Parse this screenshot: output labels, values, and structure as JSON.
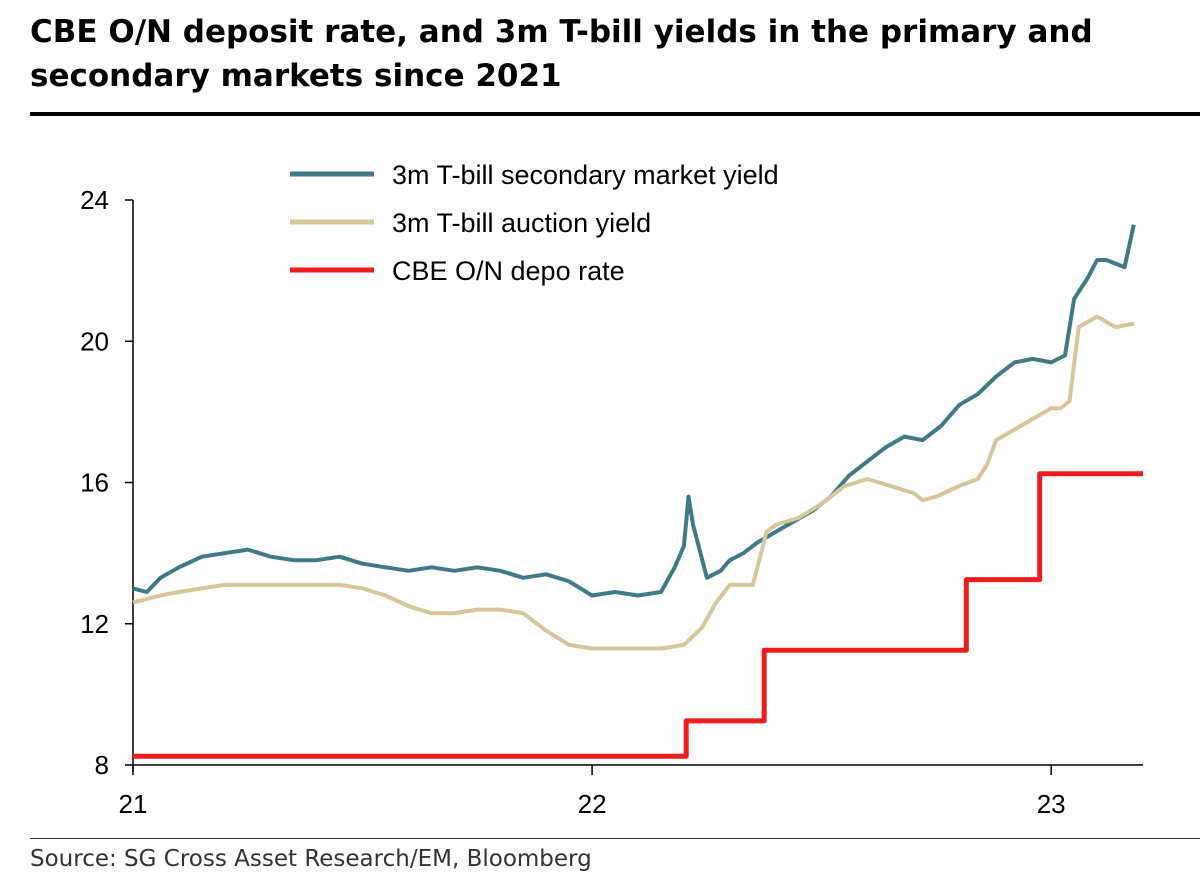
{
  "title": "CBE O/N deposit rate, and 3m T-bill yields in the primary and secondary markets since 2021",
  "source": "Source: SG Cross Asset Research/EM, Bloomberg",
  "colors": {
    "secondary": "#3f7a86",
    "auction": "#d8c59a",
    "depo": "#ee1c1c",
    "axis": "#000000"
  },
  "chart_data": {
    "type": "line",
    "title": "CBE O/N deposit rate, and 3m T-bill yields in the primary and secondary markets since 2021",
    "xlabel": "",
    "ylabel": "",
    "xlim": [
      2021.0,
      2023.2
    ],
    "ylim": [
      8,
      24
    ],
    "x_ticks": [
      2021,
      2022,
      2023
    ],
    "x_tick_labels": [
      "21",
      "22",
      "23"
    ],
    "y_ticks": [
      8,
      12,
      16,
      20,
      24
    ],
    "y_tick_labels": [
      "8",
      "12",
      "16",
      "20",
      "24"
    ],
    "legend": [
      "3m T-bill  secondary market yield",
      "3m T-bill auction yield",
      "CBE O/N depo rate"
    ],
    "legend_position": "top-center",
    "series": [
      {
        "name": "3m T-bill  secondary market yield",
        "color": "#3f7a86",
        "x": [
          2021.0,
          2021.03,
          2021.06,
          2021.1,
          2021.15,
          2021.2,
          2021.25,
          2021.3,
          2021.35,
          2021.4,
          2021.45,
          2021.5,
          2021.55,
          2021.6,
          2021.65,
          2021.7,
          2021.75,
          2021.8,
          2021.85,
          2021.9,
          2021.95,
          2022.0,
          2022.05,
          2022.1,
          2022.15,
          2022.18,
          2022.2,
          2022.21,
          2022.22,
          2022.25,
          2022.28,
          2022.3,
          2022.33,
          2022.36,
          2022.4,
          2022.44,
          2022.48,
          2022.52,
          2022.56,
          2022.6,
          2022.64,
          2022.68,
          2022.72,
          2022.76,
          2022.8,
          2022.84,
          2022.88,
          2022.92,
          2022.96,
          2023.0,
          2023.03,
          2023.05,
          2023.08,
          2023.1,
          2023.12,
          2023.14,
          2023.16,
          2023.18
        ],
        "values": [
          13.0,
          12.9,
          13.3,
          13.6,
          13.9,
          14.0,
          14.1,
          13.9,
          13.8,
          13.8,
          13.9,
          13.7,
          13.6,
          13.5,
          13.6,
          13.5,
          13.6,
          13.5,
          13.3,
          13.4,
          13.2,
          12.8,
          12.9,
          12.8,
          12.9,
          13.6,
          14.2,
          15.6,
          14.8,
          13.3,
          13.5,
          13.8,
          14.0,
          14.3,
          14.6,
          14.9,
          15.2,
          15.6,
          16.2,
          16.6,
          17.0,
          17.3,
          17.2,
          17.6,
          18.2,
          18.5,
          19.0,
          19.4,
          19.5,
          19.4,
          19.6,
          21.2,
          21.8,
          22.3,
          22.3,
          22.2,
          22.1,
          23.3
        ]
      },
      {
        "name": "3m T-bill auction yield",
        "color": "#d8c59a",
        "x": [
          2021.0,
          2021.03,
          2021.06,
          2021.1,
          2021.15,
          2021.2,
          2021.25,
          2021.3,
          2021.35,
          2021.4,
          2021.45,
          2021.5,
          2021.55,
          2021.6,
          2021.65,
          2021.7,
          2021.75,
          2021.8,
          2021.85,
          2021.9,
          2021.95,
          2022.0,
          2022.05,
          2022.1,
          2022.15,
          2022.2,
          2022.24,
          2022.27,
          2022.3,
          2022.32,
          2022.35,
          2022.38,
          2022.4,
          2022.45,
          2022.5,
          2022.55,
          2022.6,
          2022.65,
          2022.7,
          2022.72,
          2022.75,
          2022.8,
          2022.84,
          2022.86,
          2022.88,
          2022.92,
          2022.96,
          2023.0,
          2023.02,
          2023.04,
          2023.06,
          2023.1,
          2023.14,
          2023.18
        ],
        "values": [
          12.6,
          12.7,
          12.8,
          12.9,
          13.0,
          13.1,
          13.1,
          13.1,
          13.1,
          13.1,
          13.1,
          13.0,
          12.8,
          12.5,
          12.3,
          12.3,
          12.4,
          12.4,
          12.3,
          11.8,
          11.4,
          11.3,
          11.3,
          11.3,
          11.3,
          11.4,
          11.9,
          12.6,
          13.1,
          13.1,
          13.1,
          14.6,
          14.8,
          15.0,
          15.4,
          15.9,
          16.1,
          15.9,
          15.7,
          15.5,
          15.6,
          15.9,
          16.1,
          16.5,
          17.2,
          17.5,
          17.8,
          18.1,
          18.1,
          18.3,
          20.4,
          20.7,
          20.4,
          20.5
        ]
      },
      {
        "name": "CBE O/N depo rate",
        "color": "#ee1c1c",
        "step": true,
        "x": [
          2021.0,
          2022.205,
          2022.375,
          2022.815,
          2022.975,
          2023.2
        ],
        "values": [
          8.25,
          9.25,
          11.25,
          13.25,
          16.25,
          16.25
        ]
      }
    ]
  }
}
